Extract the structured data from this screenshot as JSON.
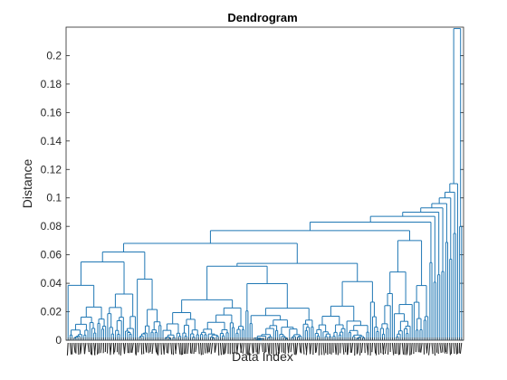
{
  "chart_data": {
    "type": "dendrogram",
    "title": "Dendrogram",
    "xlabel": "Data Index",
    "ylabel": "Distance",
    "ylim": [
      0,
      0.22
    ],
    "yticks": [
      0,
      0.02,
      0.04,
      0.06,
      0.08,
      0.1,
      0.12,
      0.14,
      0.16,
      0.18,
      0.2
    ],
    "ytick_labels": [
      "0",
      "0.02",
      "0.04",
      "0.06",
      "0.08",
      "0.1",
      "0.12",
      "0.14",
      "0.16",
      "0.18",
      "0.2"
    ],
    "leaf_count": 200,
    "leaf_labels_legible": false,
    "grid": false,
    "line_color": "#1f77b4",
    "major_merge_heights": {
      "left_block": 0.062,
      "center_block": 0.054,
      "right_shelf": 0.082,
      "wide_shelf": 0.077,
      "near_root_1": 0.1,
      "near_root_2": 0.11,
      "root": 0.219
    },
    "right_tail_merges": [
      0.083,
      0.087,
      0.09,
      0.093,
      0.096,
      0.1,
      0.104,
      0.11
    ]
  }
}
